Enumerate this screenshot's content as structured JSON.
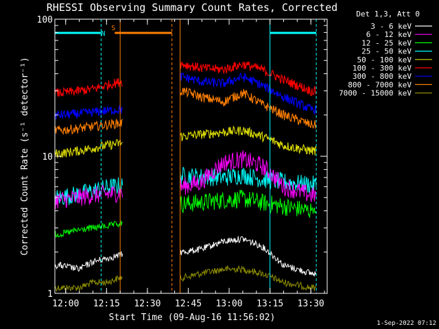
{
  "chart_data": {
    "type": "line",
    "title": "RHESSI Observing Summary Count Rates, Corrected",
    "xlabel": "Start Time (09-Aug-16 11:56:02)",
    "ylabel": "Corrected Count Rate (s⁻¹ detector⁻¹)",
    "y_scale": "log",
    "ylim": [
      1,
      100
    ],
    "xlim": [
      "11:56:02",
      "13:36:00"
    ],
    "x_ticks": [
      "12:00",
      "12:15",
      "12:30",
      "12:45",
      "13:00",
      "13:15",
      "13:30"
    ],
    "y_ticks": [
      "1",
      "10",
      "100"
    ],
    "legend_title": "Det 1,3, Att 0",
    "legend_placement": "right",
    "data_gap": [
      "12:21",
      "12:42"
    ],
    "series": [
      {
        "name": "3 - 6 keV",
        "color": "#ffffff",
        "x": [
          "11:58",
          "12:05",
          "12:10",
          "12:15",
          "12:20",
          "12:43",
          "12:50",
          "12:58",
          "13:05",
          "13:12",
          "13:20",
          "13:30"
        ],
        "values": [
          1.6,
          1.5,
          1.7,
          1.8,
          1.9,
          2.0,
          2.1,
          2.4,
          2.5,
          2.2,
          1.6,
          1.4
        ]
      },
      {
        "name": "6 - 12 keV",
        "color": "#ff00ff",
        "x": [
          "11:58",
          "12:05",
          "12:10",
          "12:15",
          "12:20",
          "12:43",
          "12:50",
          "12:58",
          "13:05",
          "13:12",
          "13:20",
          "13:30"
        ],
        "values": [
          4.8,
          5.0,
          5.2,
          5.3,
          5.4,
          6.0,
          6.5,
          9.0,
          9.5,
          8.5,
          6.0,
          5.2
        ]
      },
      {
        "name": "12 - 25 keV",
        "color": "#00ff00",
        "x": [
          "11:58",
          "12:05",
          "12:10",
          "12:15",
          "12:20",
          "12:43",
          "12:50",
          "12:58",
          "13:05",
          "13:12",
          "13:20",
          "13:30"
        ],
        "values": [
          2.7,
          2.9,
          3.0,
          3.1,
          3.2,
          4.5,
          4.6,
          4.8,
          4.9,
          4.6,
          4.3,
          4.0
        ]
      },
      {
        "name": "25 - 50 keV",
        "color": "#00ffff",
        "x": [
          "11:58",
          "12:05",
          "12:10",
          "12:15",
          "12:20",
          "12:43",
          "12:50",
          "12:58",
          "13:05",
          "13:12",
          "13:20",
          "13:30"
        ],
        "values": [
          5.0,
          5.3,
          5.6,
          5.9,
          6.1,
          7.2,
          7.1,
          7.0,
          7.3,
          6.8,
          6.5,
          6.2
        ]
      },
      {
        "name": "50 - 100 keV",
        "color": "#dddd00",
        "x": [
          "11:58",
          "12:05",
          "12:10",
          "12:15",
          "12:20",
          "12:43",
          "12:50",
          "12:58",
          "13:05",
          "13:12",
          "13:20",
          "13:30"
        ],
        "values": [
          10.5,
          11.0,
          11.5,
          12.0,
          12.5,
          14.0,
          14.5,
          15.0,
          15.5,
          14.0,
          12.0,
          11.0
        ]
      },
      {
        "name": "100 - 300 keV",
        "color": "#ff0000",
        "x": [
          "11:58",
          "12:05",
          "12:10",
          "12:15",
          "12:20",
          "12:43",
          "12:50",
          "12:58",
          "13:05",
          "13:12",
          "13:20",
          "13:30"
        ],
        "values": [
          29.0,
          30.0,
          31.0,
          33.0,
          35.0,
          47.0,
          44.0,
          43.0,
          47.0,
          43.0,
          36.0,
          30.0
        ]
      },
      {
        "name": "300 - 800 keV",
        "color": "#0000ff",
        "x": [
          "11:58",
          "12:05",
          "12:10",
          "12:15",
          "12:20",
          "12:43",
          "12:50",
          "12:58",
          "13:05",
          "13:12",
          "13:20",
          "13:30"
        ],
        "values": [
          20.0,
          20.5,
          21.0,
          21.5,
          22.0,
          38.0,
          35.0,
          34.0,
          38.0,
          33.0,
          27.0,
          22.0
        ]
      },
      {
        "name": "800 - 7000 keV",
        "color": "#ff7f00",
        "x": [
          "11:58",
          "12:05",
          "12:10",
          "12:15",
          "12:20",
          "12:43",
          "12:50",
          "12:58",
          "13:05",
          "13:12",
          "13:20",
          "13:30"
        ],
        "values": [
          15.5,
          16.0,
          16.5,
          17.0,
          17.5,
          30.0,
          27.0,
          25.0,
          29.0,
          24.0,
          20.0,
          17.0
        ]
      },
      {
        "name": "7000 - 15000 keV",
        "color": "#8f8f00",
        "x": [
          "11:58",
          "12:05",
          "12:10",
          "12:15",
          "12:20",
          "12:43",
          "12:50",
          "12:58",
          "13:05",
          "13:12",
          "13:20",
          "13:30"
        ],
        "values": [
          1.1,
          1.1,
          1.2,
          1.2,
          1.3,
          1.3,
          1.4,
          1.5,
          1.5,
          1.4,
          1.2,
          1.1
        ]
      }
    ],
    "flags": [
      {
        "label": "N",
        "color": "#00ffff",
        "x": "12:13"
      },
      {
        "label": "S",
        "color": "#ff7f00",
        "x": "12:18"
      }
    ],
    "bars": [
      {
        "color": "#00ffff",
        "x": [
          "11:56",
          "12:13"
        ]
      },
      {
        "color": "#ff7f00",
        "x": [
          "12:18",
          "12:39"
        ]
      },
      {
        "color": "#00ffff",
        "x": [
          "13:15",
          "13:32"
        ]
      }
    ],
    "vlines": [
      {
        "color": "#00ffff",
        "dashed": true,
        "x": "12:13"
      },
      {
        "color": "#ff7f00",
        "dashed": false,
        "x": "12:20"
      },
      {
        "color": "#ff7f00",
        "dashed": true,
        "x": "12:39"
      },
      {
        "color": "#ff7f00",
        "dashed": false,
        "x": "12:42"
      },
      {
        "color": "#00ffff",
        "dashed": false,
        "x": "13:15"
      },
      {
        "color": "#00ffff",
        "dashed": true,
        "x": "13:32"
      }
    ]
  },
  "footer": "1-Sep-2022 07:12"
}
